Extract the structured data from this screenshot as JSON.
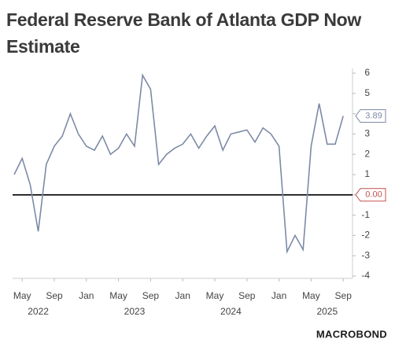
{
  "chart_data": {
    "type": "line",
    "title": "Federal Reserve Bank of Atlanta GDP Now Estimate",
    "x": [
      "2022-04",
      "2022-05",
      "2022-06",
      "2022-07",
      "2022-08",
      "2022-09",
      "2022-10",
      "2022-11",
      "2022-12",
      "2023-01",
      "2023-02",
      "2023-03",
      "2023-04",
      "2023-05",
      "2023-06",
      "2023-07",
      "2023-08",
      "2023-09",
      "2023-10",
      "2023-11",
      "2023-12",
      "2024-01",
      "2024-02",
      "2024-03",
      "2024-04",
      "2024-05",
      "2024-06",
      "2024-07",
      "2024-08",
      "2024-09",
      "2024-10",
      "2024-11",
      "2024-12",
      "2025-01",
      "2025-02",
      "2025-03",
      "2025-04",
      "2025-05",
      "2025-06",
      "2025-07",
      "2025-08",
      "2025-09"
    ],
    "series": [
      {
        "color": "#7d8aa6",
        "values": [
          1.0,
          1.8,
          0.5,
          -1.8,
          1.5,
          2.4,
          2.9,
          4.0,
          3.0,
          2.4,
          2.2,
          2.9,
          2.0,
          2.3,
          3.0,
          2.4,
          5.9,
          5.2,
          1.5,
          2.0,
          2.3,
          2.5,
          3.0,
          2.3,
          2.9,
          3.4,
          2.2,
          3.0,
          3.1,
          3.2,
          2.6,
          3.3,
          3.0,
          2.4,
          -2.8,
          -2.0,
          -2.7,
          2.4,
          4.5,
          2.5,
          2.5,
          3.89
        ]
      }
    ],
    "xticks": [
      {
        "value": "2022-05",
        "label": "May"
      },
      {
        "value": "2022-09",
        "label": "Sep"
      },
      {
        "value": "2023-01",
        "label": "Jan"
      },
      {
        "value": "2023-05",
        "label": "May"
      },
      {
        "value": "2023-09",
        "label": "Sep"
      },
      {
        "value": "2024-01",
        "label": "Jan"
      },
      {
        "value": "2024-05",
        "label": "May"
      },
      {
        "value": "2024-09",
        "label": "Sep"
      },
      {
        "value": "2025-01",
        "label": "Jan"
      },
      {
        "value": "2025-05",
        "label": "May"
      },
      {
        "value": "2025-09",
        "label": "Sep"
      }
    ],
    "years": [
      {
        "value": "2022-07",
        "label": "2022"
      },
      {
        "value": "2023-07",
        "label": "2023"
      },
      {
        "value": "2024-07",
        "label": "2024"
      },
      {
        "value": "2025-07",
        "label": "2025"
      }
    ],
    "ylim": [
      -4,
      6
    ],
    "yticks": [
      -4,
      -3,
      -2,
      -1,
      0,
      1,
      2,
      3,
      4,
      5,
      6
    ],
    "last_label": "3.89",
    "reference_line": {
      "value": 0,
      "label": "0.00",
      "color": "#000000"
    },
    "source": "MACROBOND"
  }
}
